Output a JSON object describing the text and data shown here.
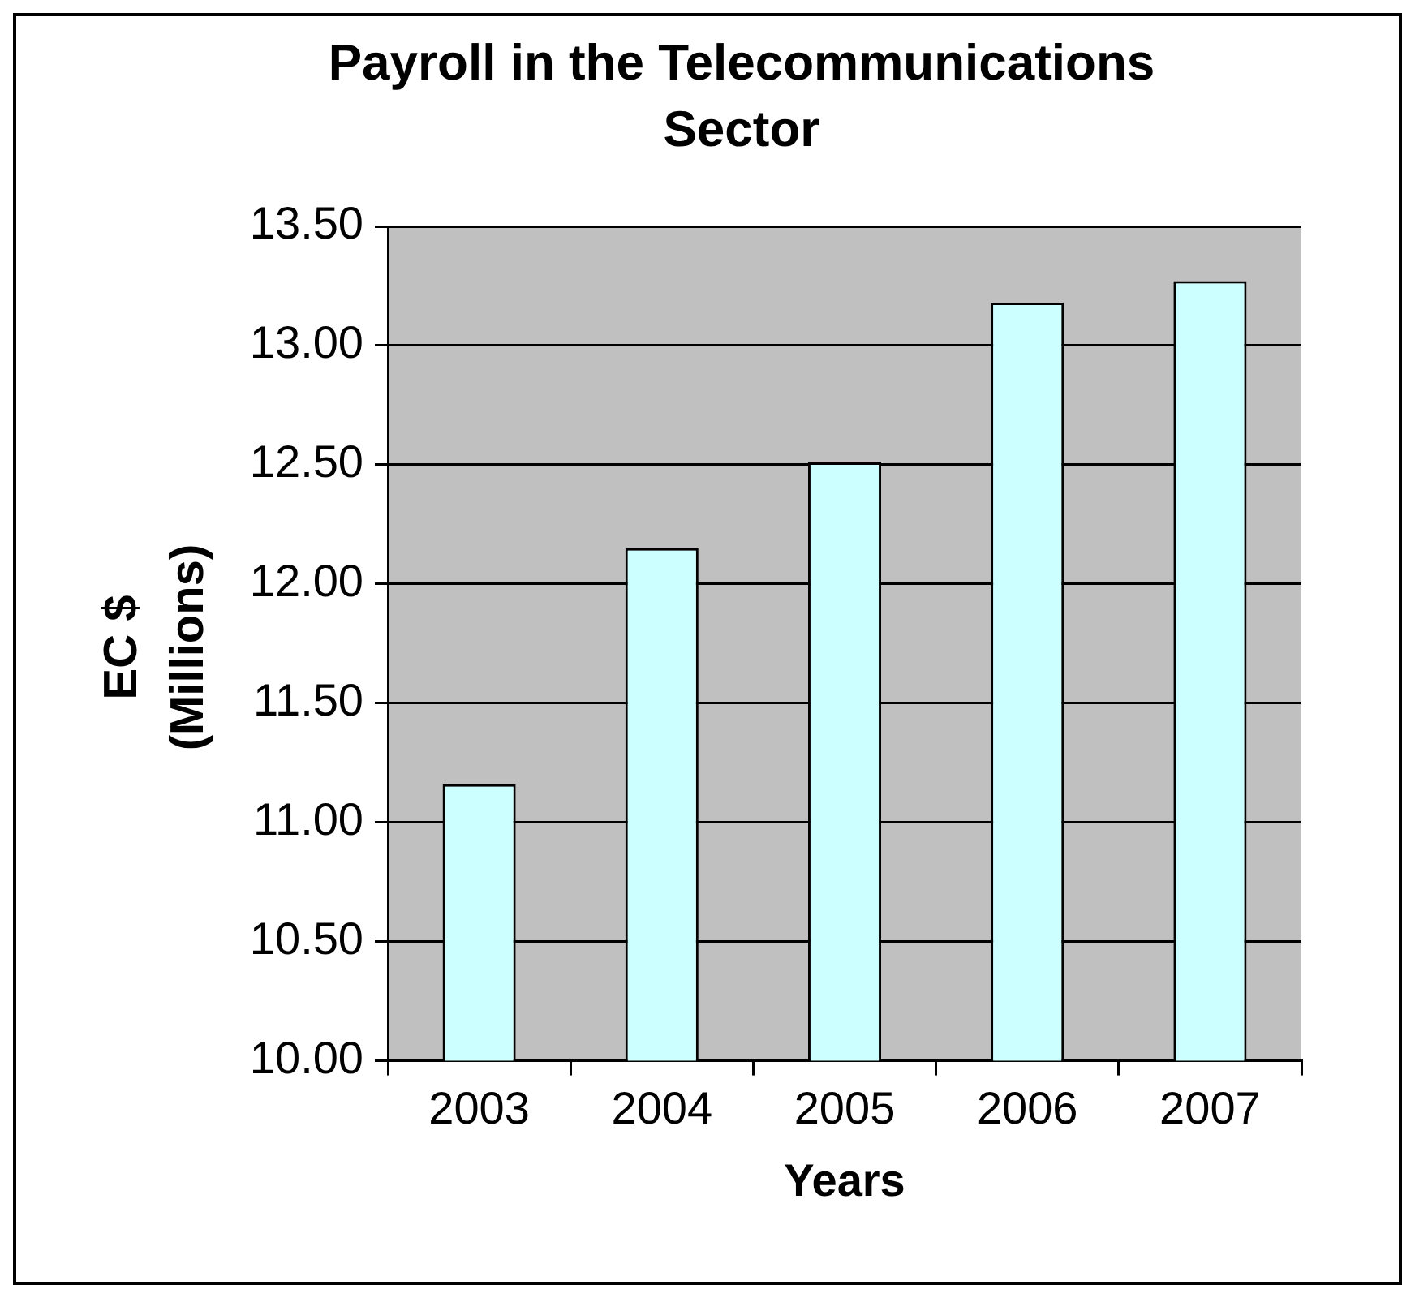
{
  "chart_data": {
    "type": "bar",
    "title": "Payroll in the Telecommunications Sector",
    "xlabel": "Years",
    "ylabel": "EC $ (Millions)",
    "categories": [
      "2003",
      "2004",
      "2005",
      "2006",
      "2007"
    ],
    "values": [
      11.16,
      12.15,
      12.51,
      13.18,
      13.27
    ],
    "color": "#ccffff",
    "ylim": [
      10,
      13.5
    ],
    "yticks": [
      {
        "value": 10,
        "label": "10.00"
      },
      {
        "value": 10.5,
        "label": "10.50"
      },
      {
        "value": 11,
        "label": "11.00"
      },
      {
        "value": 11.5,
        "label": "11.50"
      },
      {
        "value": 12,
        "label": "12.00"
      },
      {
        "value": 12.5,
        "label": "12.50"
      },
      {
        "value": 13,
        "label": "13.00"
      },
      {
        "value": 13.5,
        "label": "13.50"
      }
    ],
    "grid": "y"
  }
}
